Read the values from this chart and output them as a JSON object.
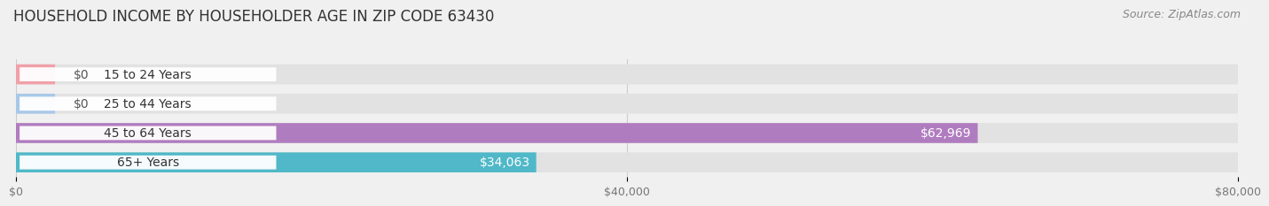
{
  "title": "HOUSEHOLD INCOME BY HOUSEHOLDER AGE IN ZIP CODE 63430",
  "source": "Source: ZipAtlas.com",
  "categories": [
    "15 to 24 Years",
    "25 to 44 Years",
    "45 to 64 Years",
    "65+ Years"
  ],
  "values": [
    0,
    0,
    62969,
    34063
  ],
  "bar_colors": [
    "#f0a0a8",
    "#a8c8e8",
    "#b07cc0",
    "#50b8c8"
  ],
  "label_colors": [
    "#555555",
    "#555555",
    "#ffffff",
    "#ffffff"
  ],
  "value_labels": [
    "$0",
    "$0",
    "$62,969",
    "$34,063"
  ],
  "xlim": [
    0,
    80000
  ],
  "xticks": [
    0,
    40000,
    80000
  ],
  "xtick_labels": [
    "$0",
    "$40,000",
    "$80,000"
  ],
  "background_color": "#f0f0f0",
  "bar_background_color": "#e2e2e2",
  "title_fontsize": 12,
  "source_fontsize": 9,
  "label_fontsize": 10,
  "tick_fontsize": 9,
  "figsize": [
    14.06,
    2.33
  ],
  "dpi": 100
}
